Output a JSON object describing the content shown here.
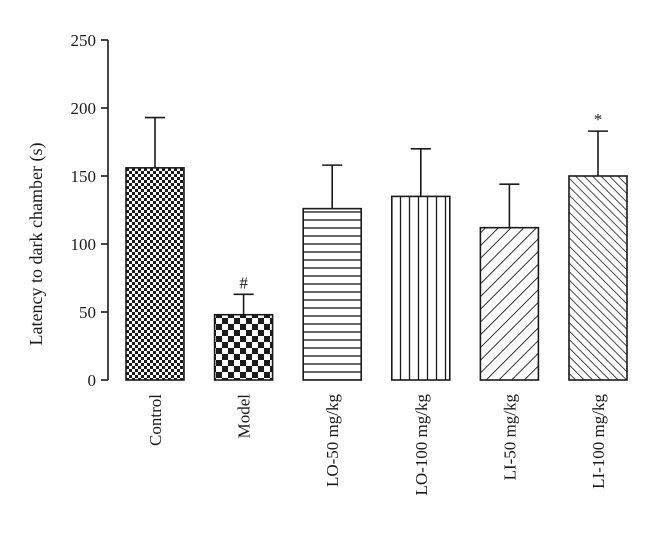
{
  "chart_data": {
    "type": "bar",
    "categories": [
      "Control",
      "Model",
      "LO-50 mg/kg",
      "LO-100 mg/kg",
      "LI-50 mg/kg",
      "LI-100 mg/kg"
    ],
    "values": [
      156,
      48,
      126,
      135,
      112,
      150
    ],
    "error_upper": [
      193,
      63,
      158,
      170,
      144,
      183
    ],
    "annotations": [
      "",
      "#",
      "",
      "",
      "",
      "*"
    ],
    "patterns": [
      "checker-fine",
      "checker-coarse",
      "horizontal-lines",
      "vertical-lines",
      "diagonal-lines",
      "diagonal-lines-dense"
    ],
    "xlabel": "",
    "ylabel": "Latency to dark chamber (s)",
    "ylim": [
      0,
      250
    ],
    "yticks": [
      0,
      50,
      100,
      150,
      200,
      250
    ],
    "grid": false,
    "legend": "none",
    "colors": {
      "ink": "#1a1a1a",
      "fill": "#ffffff"
    }
  }
}
